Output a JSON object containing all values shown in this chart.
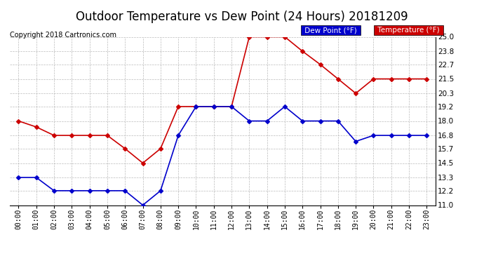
{
  "title": "Outdoor Temperature vs Dew Point (24 Hours) 20181209",
  "copyright": "Copyright 2018 Cartronics.com",
  "hours": [
    "00:00",
    "01:00",
    "02:00",
    "03:00",
    "04:00",
    "05:00",
    "06:00",
    "07:00",
    "08:00",
    "09:00",
    "10:00",
    "11:00",
    "12:00",
    "13:00",
    "14:00",
    "15:00",
    "16:00",
    "17:00",
    "18:00",
    "19:00",
    "20:00",
    "21:00",
    "22:00",
    "23:00"
  ],
  "temperature": [
    18.0,
    17.5,
    16.8,
    16.8,
    16.8,
    16.8,
    15.7,
    14.5,
    15.7,
    19.2,
    19.2,
    19.2,
    19.2,
    25.0,
    25.0,
    25.0,
    23.8,
    22.7,
    21.5,
    20.3,
    21.5,
    21.5,
    21.5,
    21.5
  ],
  "dewpoint": [
    13.3,
    13.3,
    12.2,
    12.2,
    12.2,
    12.2,
    12.2,
    11.0,
    12.2,
    16.8,
    19.2,
    19.2,
    19.2,
    18.0,
    18.0,
    19.2,
    18.0,
    18.0,
    18.0,
    16.3,
    16.8,
    16.8,
    16.8,
    16.8
  ],
  "temp_color": "#cc0000",
  "dew_color": "#0000cc",
  "marker": "D",
  "markersize": 3,
  "linewidth": 1.2,
  "ylim": [
    11.0,
    25.0
  ],
  "yticks": [
    11.0,
    12.2,
    13.3,
    14.5,
    15.7,
    16.8,
    18.0,
    19.2,
    20.3,
    21.5,
    22.7,
    23.8,
    25.0
  ],
  "background_color": "#ffffff",
  "grid_color": "#aaaaaa",
  "title_fontsize": 12,
  "copyright_fontsize": 7,
  "legend_dew_label": "Dew Point (°F)",
  "legend_temp_label": "Temperature (°F)"
}
